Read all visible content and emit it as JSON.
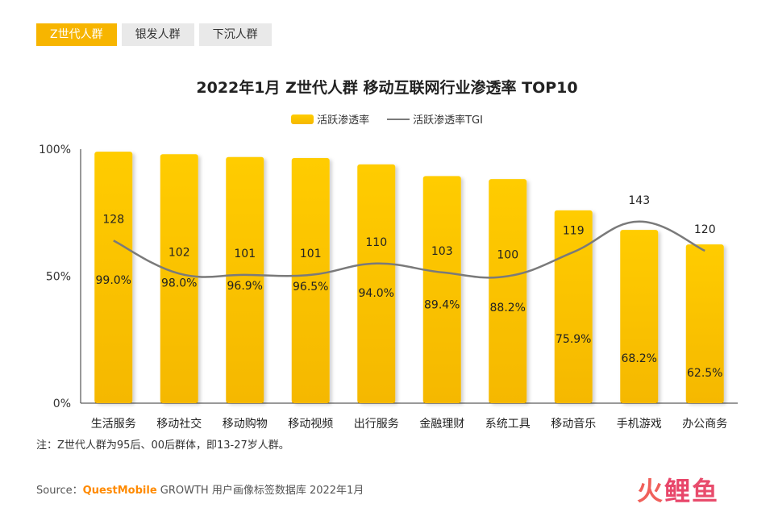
{
  "tabs": [
    {
      "label": "Z世代人群",
      "active": true
    },
    {
      "label": "银发人群",
      "active": false
    },
    {
      "label": "下沉人群",
      "active": false
    }
  ],
  "chart_data": {
    "type": "bar",
    "title": "2022年1月 Z世代人群 移动互联网行业渗透率 TOP10",
    "categories": [
      "生活服务",
      "移动社交",
      "移动购物",
      "移动视频",
      "出行服务",
      "金融理财",
      "系统工具",
      "移动音乐",
      "手机游戏",
      "办公商务"
    ],
    "series": [
      {
        "name": "活跃渗透率",
        "type": "bar",
        "values": [
          99.0,
          98.0,
          96.9,
          96.5,
          94.0,
          89.4,
          88.2,
          75.9,
          68.2,
          62.5
        ],
        "labels": [
          "99.0%",
          "98.0%",
          "96.9%",
          "96.5%",
          "94.0%",
          "89.4%",
          "88.2%",
          "75.9%",
          "68.2%",
          "62.5%"
        ]
      },
      {
        "name": "活跃渗透率TGI",
        "type": "line",
        "values": [
          128,
          102,
          101,
          101,
          110,
          103,
          100,
          119,
          143,
          120
        ]
      }
    ],
    "yticks": [
      "0%",
      "50%",
      "100%"
    ],
    "ylim": [
      0,
      100
    ],
    "tgi_range": [
      0,
      200
    ],
    "legend_position": "top-center",
    "grid": false,
    "colors": {
      "bar_top": "#ffcc00",
      "bar_bottom": "#f5b800",
      "line": "#7a7a7a"
    }
  },
  "note": "注：Z世代人群为95后、00后群体，即13-27岁人群。",
  "source": {
    "prefix": "Source：",
    "brand": "QuestMobile",
    "rest": " GROWTH 用户画像标签数据库 2022年1月"
  },
  "logo": {
    "char1": "火",
    "char2": "鲤",
    "char3": "鱼"
  }
}
